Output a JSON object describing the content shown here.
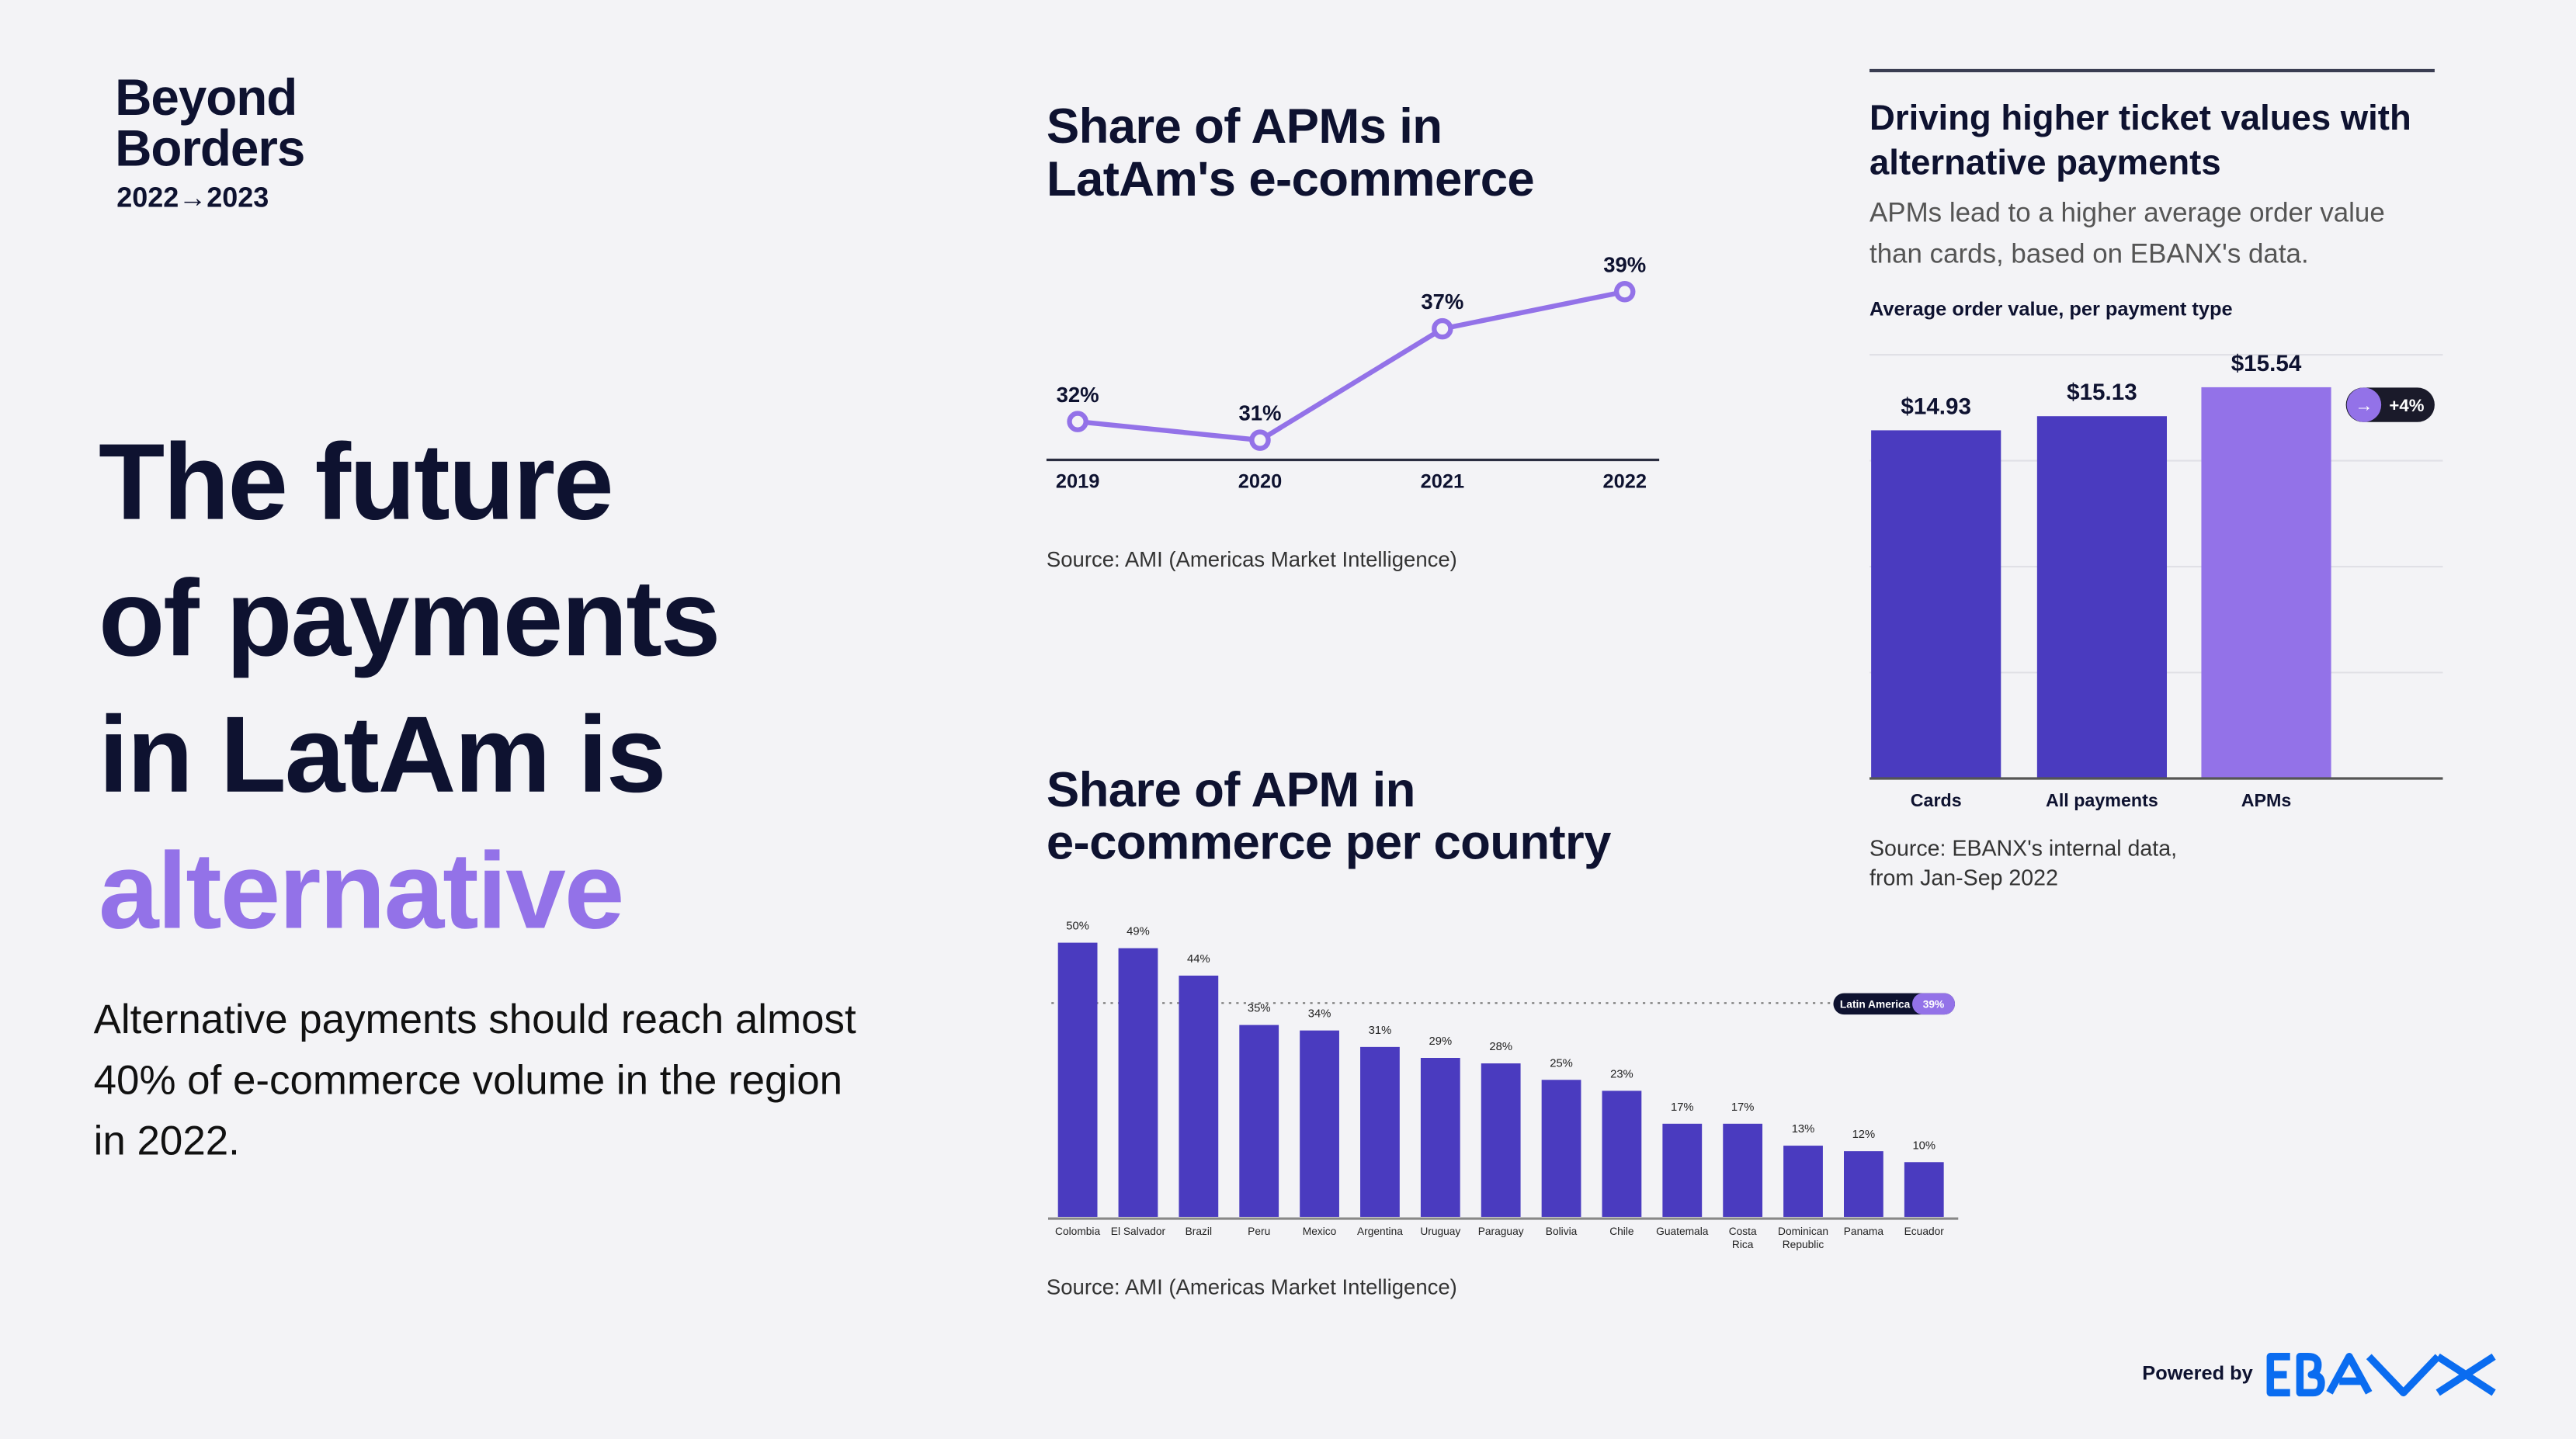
{
  "brand": {
    "title_line1": "Beyond",
    "title_line2": "Borders",
    "years": "2022→2023"
  },
  "headline": {
    "line1": "The future",
    "line2": "of payments",
    "line3": "in LatAm is",
    "accent": "alternative"
  },
  "paragraph": "Alternative payments should reach almost 40% of e-commerce volume in the region in 2022.",
  "colors": {
    "primary_bar": "#4a3bbf",
    "accent": "#9372e8",
    "dark": "#0e1230",
    "ebanx_blue": "#0a6cf0"
  },
  "footer": {
    "powered_by": "Powered by",
    "logo_text": "EBANX"
  },
  "chart_data": [
    {
      "type": "line",
      "title_line1": "Share of APMs in",
      "title_line2": "LatAm's e-commerce",
      "categories": [
        "2019",
        "2020",
        "2021",
        "2022"
      ],
      "values": [
        32,
        31,
        37,
        39
      ],
      "labels": [
        "32%",
        "31%",
        "37%",
        "39%"
      ],
      "source": "Source: AMI (Americas Market Intelligence)",
      "color": "#9372e8"
    },
    {
      "type": "bar",
      "title_line1": "Share of APM in",
      "title_line2": "e-commerce per country",
      "categories": [
        "Colombia",
        "El Salvador",
        "Brazil",
        "Peru",
        "Mexico",
        "Argentina",
        "Uruguay",
        "Paraguay",
        "Bolivia",
        "Chile",
        "Guatemala",
        "Costa Rica",
        "Dominican Republic",
        "Panama",
        "Ecuador"
      ],
      "values": [
        50,
        49,
        44,
        35,
        34,
        31,
        29,
        28,
        25,
        23,
        17,
        17,
        13,
        12,
        10
      ],
      "labels": [
        "50%",
        "49%",
        "44%",
        "35%",
        "34%",
        "31%",
        "29%",
        "28%",
        "25%",
        "23%",
        "17%",
        "17%",
        "13%",
        "12%",
        "10%"
      ],
      "reference": {
        "name": "Latin America",
        "value": 39,
        "label": "39%"
      },
      "source": "Source: AMI (Americas Market Intelligence)"
    },
    {
      "type": "bar",
      "title": "Driving higher ticket values with alternative payments",
      "subtitle": "APMs lead to a higher average order value than cards, based on EBANX's data.",
      "caption": "Average order value, per payment type",
      "categories": [
        "Cards",
        "All payments",
        "APMs"
      ],
      "values": [
        14.93,
        15.13,
        15.54
      ],
      "labels": [
        "$14.93",
        "$15.13",
        "$15.54"
      ],
      "colors": [
        "#4a3bbf",
        "#4a3bbf",
        "#9372e8"
      ],
      "ylim": [
        10,
        16
      ],
      "grid": true,
      "annotation": "+4%",
      "source_line1": "Source: EBANX's internal data,",
      "source_line2": "from Jan-Sep 2022"
    }
  ]
}
